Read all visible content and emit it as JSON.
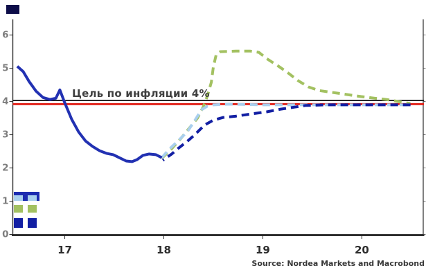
{
  "title_marker": {
    "color": "#0d0d49"
  },
  "annotations": {
    "target_label": "Цель по инфляции 4%",
    "source": "Source: Nordea Markets and Macrobond"
  },
  "palette": {
    "axis": "#2b2b2b",
    "bottom_axis": "#1e1e1e",
    "y_tick_label": "#7e7e7e",
    "x_tick_label": "#2d2d2d",
    "target_label_color": "#3f3f3f",
    "source_color": "#383838",
    "reference_black": "#141414",
    "reference_red": "#e2231a",
    "actual_blue": "#2231b2",
    "baseline_lightblue": "#a9cfee",
    "high_green": "#a3c161",
    "low_navy": "#121fa3"
  },
  "chart_data": {
    "type": "line",
    "title": "",
    "xlabel": "",
    "ylabel": "%",
    "grid": false,
    "xlim": [
      2016.475,
      2020.62
    ],
    "ylim": [
      0,
      6.43
    ],
    "x_ticks": {
      "years": [
        2017,
        2018,
        2019,
        2020
      ],
      "labels": [
        "17",
        "18",
        "19",
        "20"
      ]
    },
    "y_ticks": {
      "values": [
        0,
        1,
        2,
        3,
        4,
        5,
        6
      ],
      "labels": [
        "0",
        "1",
        "2",
        "3",
        "4",
        "5",
        "6"
      ]
    },
    "reference_lines": [
      {
        "name": "inflation-target-black-line",
        "value": 4.03,
        "color": "#141414",
        "width": 1.8
      },
      {
        "name": "inflation-target-red-line",
        "value": 3.92,
        "color": "#e2231a",
        "width": 3
      }
    ],
    "series": [
      {
        "name": "high-inflation-scenario",
        "color": "#a3c161",
        "dashed": true,
        "dashoffset": 0,
        "x": [
          2017.98,
          2018.08,
          2018.17,
          2018.25,
          2018.34,
          2018.4,
          2018.44,
          2018.48,
          2018.5,
          2018.53,
          2018.57,
          2018.73,
          2018.87,
          2018.96,
          2019.04,
          2019.15,
          2019.25,
          2019.36,
          2019.46,
          2019.57,
          2019.71,
          2019.85,
          2019.99,
          2020.13,
          2020.25,
          2020.37,
          2020.49
        ],
        "y": [
          2.29,
          2.58,
          2.88,
          3.17,
          3.5,
          3.85,
          4.17,
          4.58,
          5.04,
          5.42,
          5.5,
          5.52,
          5.52,
          5.48,
          5.29,
          5.08,
          4.87,
          4.62,
          4.44,
          4.33,
          4.27,
          4.21,
          4.15,
          4.1,
          4.06,
          4.0,
          3.94
        ]
      },
      {
        "name": "baseline-scenario",
        "color": "#a9cfee",
        "dashed": true,
        "dashoffset": 0,
        "x": [
          2017.98,
          2018.06,
          2018.15,
          2018.24,
          2018.32,
          2018.38,
          2018.44,
          2018.5,
          2018.66,
          2019.0,
          2019.5,
          2020.0,
          2020.5
        ],
        "y": [
          2.31,
          2.58,
          2.83,
          3.1,
          3.46,
          3.75,
          3.86,
          3.9,
          3.92,
          3.9,
          3.9,
          3.9,
          3.9
        ]
      },
      {
        "name": "low-inflation-scenario",
        "color": "#121fa3",
        "dashed": true,
        "dashoffset": 9,
        "x": [
          2017.99,
          2018.08,
          2018.15,
          2018.24,
          2018.32,
          2018.41,
          2018.5,
          2018.6,
          2018.73,
          2018.87,
          2019.04,
          2019.18,
          2019.32,
          2019.43,
          2019.64,
          2019.92,
          2020.2,
          2020.5
        ],
        "y": [
          2.23,
          2.42,
          2.6,
          2.81,
          3.02,
          3.29,
          3.44,
          3.52,
          3.56,
          3.62,
          3.69,
          3.77,
          3.83,
          3.88,
          3.9,
          3.9,
          3.9,
          3.9
        ]
      },
      {
        "name": "actual-inflation",
        "color": "#2231b2",
        "dashed": false,
        "dashoffset": 0,
        "x": [
          2016.52,
          2016.58,
          2016.64,
          2016.71,
          2016.78,
          2016.85,
          2016.91,
          2016.95,
          2017.0,
          2017.07,
          2017.14,
          2017.21,
          2017.28,
          2017.35,
          2017.42,
          2017.49,
          2017.55,
          2017.62,
          2017.68,
          2017.73,
          2017.79,
          2017.85,
          2017.92,
          2017.98
        ],
        "y": [
          5.06,
          4.9,
          4.6,
          4.31,
          4.12,
          4.06,
          4.1,
          4.35,
          3.96,
          3.46,
          3.08,
          2.81,
          2.65,
          2.52,
          2.44,
          2.4,
          2.31,
          2.21,
          2.19,
          2.25,
          2.38,
          2.42,
          2.4,
          2.31
        ]
      }
    ],
    "legend": {
      "position": "bottom-left",
      "items": [
        {
          "name": "baseline-scenario-swatch",
          "style": "overlay",
          "base": "#1c2bb0",
          "dash": "#a9cfee",
          "height": 13,
          "margin_top": 0
        },
        {
          "name": "high-scenario-swatch",
          "style": "dashes",
          "dash": "#a3c161",
          "height": 11,
          "margin_top": 6
        },
        {
          "name": "low-scenario-swatch",
          "style": "dashes",
          "dash": "#121fa3",
          "height": 14,
          "margin_top": 8
        }
      ]
    }
  }
}
